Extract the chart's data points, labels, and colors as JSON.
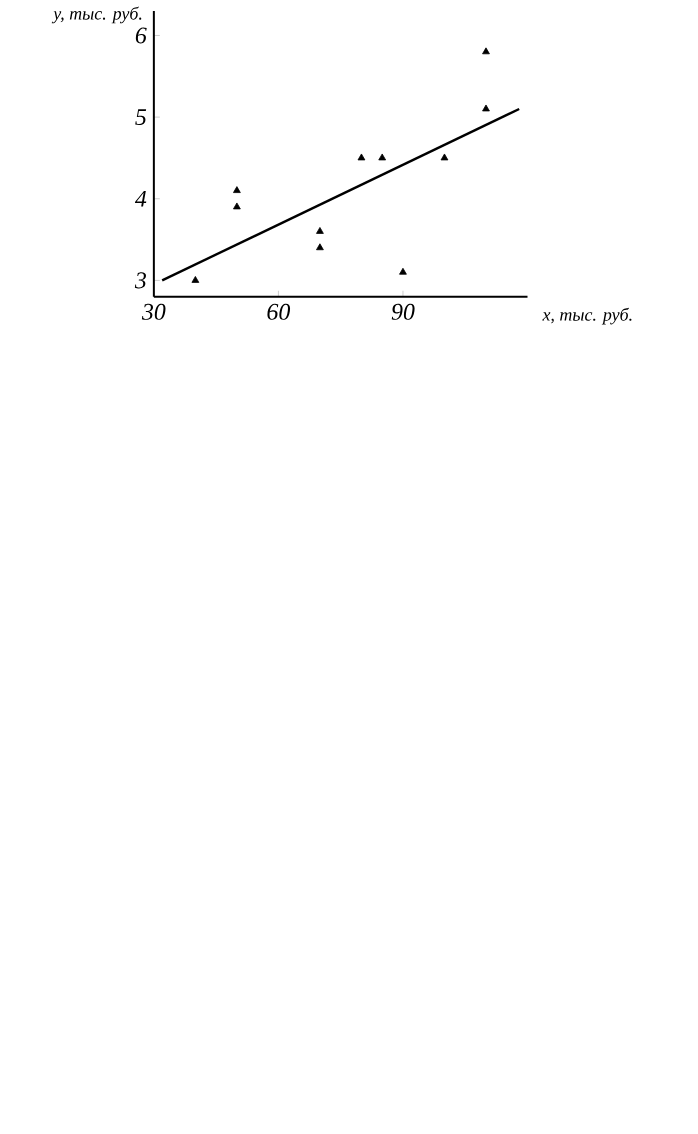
{
  "chart_data": {
    "type": "scatter",
    "xlabel": "x, тыс. руб.",
    "ylabel": "y, тыс. руб.",
    "xlim": [
      30,
      120
    ],
    "ylim": [
      2.8,
      6.3
    ],
    "xticks": [
      30,
      60,
      90
    ],
    "yticks": [
      3,
      4,
      5,
      6
    ],
    "series": [
      {
        "color": "#000000",
        "marker": "triangle",
        "x": [
          40,
          50,
          50,
          70,
          70,
          80,
          85,
          90,
          100,
          110,
          110
        ],
        "values": [
          3.0,
          4.1,
          3.9,
          3.6,
          3.4,
          4.5,
          4.5,
          3.1,
          4.5,
          5.8,
          5.1
        ]
      },
      {
        "type": "line",
        "color": "#000000",
        "x": [
          32,
          118
        ],
        "values": [
          3.0,
          5.1
        ]
      }
    ]
  }
}
